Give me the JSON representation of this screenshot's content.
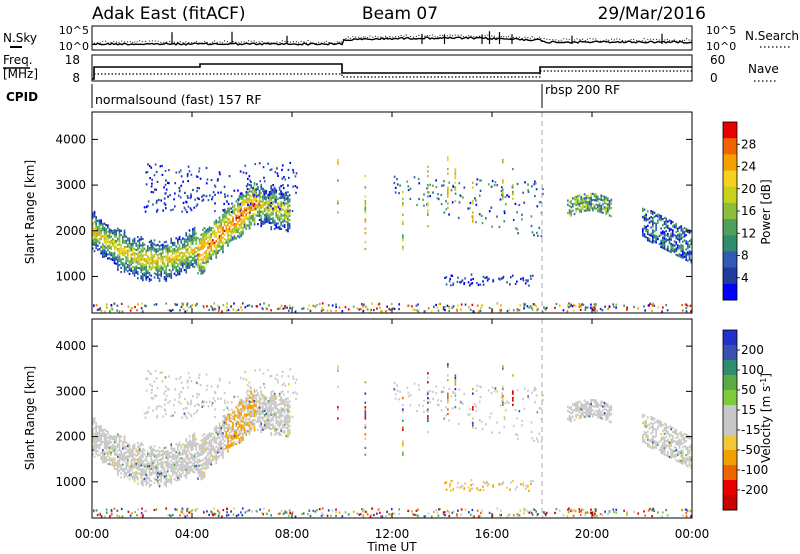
{
  "header": {
    "title": "Adak East (fitACF)",
    "beam": "Beam 07",
    "date": "29/Mar/2016"
  },
  "top_panel": {
    "left_label": "N.Sky",
    "right_label": "N.Search",
    "left_ticks": [
      "10^5",
      "10^0"
    ],
    "right_ticks": [
      "10^5",
      "10^0"
    ]
  },
  "freq_panel": {
    "left_label_1": "Freq.",
    "left_label_2": "[MHz]",
    "right_label": "Nave",
    "left_ticks": [
      "18",
      "8"
    ],
    "right_ticks": [
      "60",
      "0"
    ]
  },
  "cpid": {
    "label": "CPID",
    "modes": [
      {
        "name": "normalsound (fast) 157 RF",
        "start_hour": 0
      },
      {
        "name": "rbsp 200 RF",
        "start_hour": 18
      }
    ]
  },
  "chart_data": [
    {
      "type": "heatmap",
      "name": "power",
      "ylabel": "Slant Range [km]",
      "ylim": [
        200,
        4600
      ],
      "yticks": [
        "1000",
        "2000",
        "3000",
        "4000"
      ],
      "xlabel": "Time UT",
      "xlim": [
        0,
        24
      ],
      "xticks": [
        "00:00",
        "04:00",
        "08:00",
        "12:00",
        "16:00",
        "20:00",
        "00:00"
      ],
      "colorbar_label": "Power [dB]",
      "colorbar_ticks": [
        "4",
        "8",
        "12",
        "16",
        "20",
        "24",
        "28"
      ],
      "colorbar_colors": [
        "#0000ff",
        "#1e3ca0",
        "#2f5ab5",
        "#2f8c6e",
        "#4fa05a",
        "#8cbe3c",
        "#c8d21e",
        "#f5d21e",
        "#f5a000",
        "#f06400",
        "#e60000"
      ]
    },
    {
      "type": "heatmap",
      "name": "velocity",
      "ylabel": "Slant Range [km]",
      "ylim": [
        200,
        4600
      ],
      "yticks": [
        "1000",
        "2000",
        "3000",
        "4000"
      ],
      "xlabel": "Time UT",
      "xlim": [
        0,
        24
      ],
      "xticks": [
        "00:00",
        "04:00",
        "08:00",
        "12:00",
        "16:00",
        "20:00",
        "00:00"
      ],
      "colorbar_label_main": "Velocity [m s",
      "colorbar_label_sup": "-1",
      "colorbar_label_end": "]",
      "colorbar_ticks": [
        "200",
        "100",
        "50",
        "15",
        "-15",
        "-50",
        "-100",
        "-200"
      ],
      "colorbar_colors": [
        "#2030c8",
        "#3c50b4",
        "#2f8c6e",
        "#5aaa46",
        "#7ccc3c",
        "#c8c8c8",
        "#c8c8c8",
        "#f0c83c",
        "#f0a000",
        "#f06400",
        "#e60000",
        "#c80000"
      ]
    }
  ],
  "axis": {
    "xlabel": "Time UT"
  }
}
